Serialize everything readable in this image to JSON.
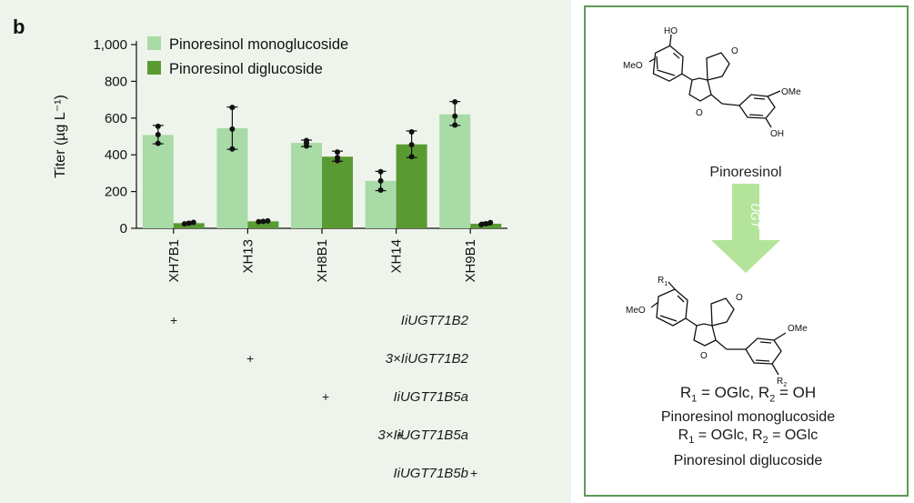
{
  "panel_label": "b",
  "chart_data": {
    "type": "bar",
    "categories": [
      "XH7B1",
      "XH13",
      "XH8B1",
      "XH14",
      "XH9B1"
    ],
    "series": [
      {
        "name": "Pinoresinol monoglucoside",
        "color": "#a8dba6",
        "values": [
          508,
          545,
          465,
          258,
          620
        ],
        "errors": [
          [
            460,
            560
          ],
          [
            430,
            660
          ],
          [
            445,
            480
          ],
          [
            205,
            310
          ],
          [
            560,
            690
          ]
        ],
        "points": [
          [
            462,
            510,
            555
          ],
          [
            432,
            540,
            658
          ],
          [
            448,
            465,
            478
          ],
          [
            208,
            258,
            308
          ],
          [
            562,
            610,
            688
          ]
        ]
      },
      {
        "name": "Pinoresinol diglucoside",
        "color": "#5a9a32",
        "values": [
          28,
          38,
          390,
          457,
          25
        ],
        "errors": [
          [
            22,
            34
          ],
          [
            35,
            41
          ],
          [
            365,
            420
          ],
          [
            385,
            530
          ],
          [
            18,
            33
          ]
        ],
        "points": [
          [
            24,
            28,
            32
          ],
          [
            36,
            38,
            40
          ],
          [
            368,
            385,
            415
          ],
          [
            390,
            455,
            525
          ],
          [
            20,
            25,
            31
          ]
        ]
      }
    ],
    "ylabel": "Titer (µg L⁻¹)",
    "ylim": [
      0,
      1000
    ],
    "yticks": [
      "0",
      "200",
      "400",
      "600",
      "800",
      "1,000"
    ],
    "ytick_values": [
      0,
      200,
      400,
      600,
      800,
      1000
    ],
    "legend_position": "top-left",
    "grid": false
  },
  "gene_rows": [
    {
      "label": "IiUGT71B2",
      "mark": "+",
      "column": 0
    },
    {
      "label": "3×IiUGT71B2",
      "mark": "+",
      "column": 1
    },
    {
      "label": "IiUGT71B5a",
      "mark": "+",
      "column": 2
    },
    {
      "label": "3×IiUGT71B5a",
      "mark": "+",
      "column": 3
    },
    {
      "label": "IiUGT71B5b",
      "mark": "+",
      "column": 4
    }
  ],
  "scheme": {
    "top_compound": "Pinoresinol",
    "arrow_label": "UGT",
    "arrow_color": "#b3e49a",
    "top_substituents": {
      "oh_left": "HO",
      "ome_left": "MeO",
      "ome_right": "OMe",
      "oh_right": "OH",
      "ring_o1": "O",
      "ring_o2": "O"
    },
    "bottom_substituents": {
      "r1": "R",
      "r1_sub": "1",
      "ome_left": "MeO",
      "ome_right": "OMe",
      "r2": "R",
      "r2_sub": "2",
      "ring_o1": "O",
      "ring_o2": "O"
    },
    "definition_mono": {
      "r1": "R",
      "r1_sub": "1",
      "r1_val": " = OGlc, ",
      "r2": "R",
      "r2_sub": "2",
      "r2_val": " = OH"
    },
    "mono_name": "Pinoresinol monoglucoside",
    "definition_di": {
      "r1": "R",
      "r1_sub": "1",
      "r1_val": " = OGlc, ",
      "r2": "R",
      "r2_sub": "2",
      "r2_val": " = OGlc"
    },
    "di_name": "Pinoresinol diglucoside"
  }
}
